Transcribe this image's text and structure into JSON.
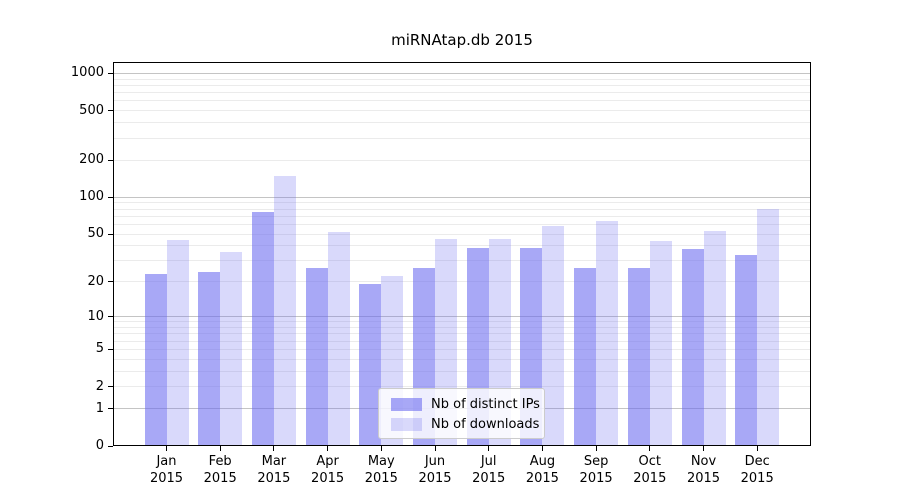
{
  "chart_data": {
    "type": "bar",
    "title": "miRNAtap.db 2015",
    "categories": [
      "Jan",
      "Feb",
      "Mar",
      "Apr",
      "May",
      "Jun",
      "Jul",
      "Aug",
      "Sep",
      "Oct",
      "Nov",
      "Dec"
    ],
    "category_year": "2015",
    "series": [
      {
        "name": "Nb of distinct IPs",
        "color": "rgba(105,105,240,0.58)",
        "values": [
          23,
          24,
          75,
          26,
          19,
          26,
          38,
          38,
          26,
          26,
          37,
          33
        ]
      },
      {
        "name": "Nb of downloads",
        "color": "rgba(105,105,240,0.25)",
        "values": [
          44,
          35,
          147,
          51,
          22,
          45,
          45,
          58,
          63,
          43,
          52,
          80
        ]
      }
    ],
    "y_axis": {
      "scale": "log1p",
      "range": [
        0,
        1000
      ],
      "ticks": [
        0,
        1,
        2,
        5,
        10,
        20,
        50,
        100,
        200,
        500,
        1000
      ]
    },
    "grid": {
      "on": true,
      "major_values": [
        1,
        10,
        100,
        1000
      ],
      "minor_values": [
        2,
        3,
        4,
        5,
        6,
        7,
        8,
        9,
        20,
        30,
        40,
        50,
        60,
        70,
        80,
        90,
        200,
        300,
        400,
        500,
        600,
        700,
        800,
        900
      ],
      "major_color": "#c4c4c4",
      "minor_color": "#ebebeb"
    },
    "legend_position": "lower-center"
  }
}
